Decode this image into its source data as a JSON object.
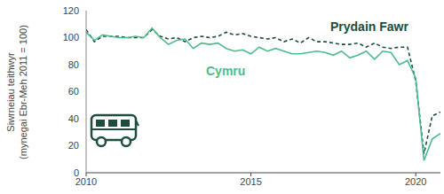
{
  "chart_data": {
    "type": "line",
    "y_label": [
      "Siwrneiau teithwyr",
      "(mynegai Ebr-Meh 2011 = 100)"
    ],
    "x": [
      2010,
      2010.25,
      2010.5,
      2010.75,
      2011,
      2011.25,
      2011.5,
      2011.75,
      2012,
      2012.25,
      2012.5,
      2012.75,
      2013,
      2013.25,
      2013.5,
      2013.75,
      2014,
      2014.25,
      2014.5,
      2014.75,
      2015,
      2015.25,
      2015.5,
      2015.75,
      2016,
      2016.25,
      2016.5,
      2016.75,
      2017,
      2017.25,
      2017.5,
      2017.75,
      2018,
      2018.25,
      2018.5,
      2018.75,
      2019,
      2019.25,
      2019.5,
      2019.75,
      2020,
      2020.25,
      2020.5,
      2020.75
    ],
    "series": [
      {
        "name": "Prydain Fawr",
        "color": "#1d4d3b",
        "line_style": "dashed",
        "values": [
          106,
          97,
          101,
          101,
          101,
          100,
          100,
          100,
          106,
          101,
          99,
          100,
          97,
          100,
          101,
          100,
          101,
          104,
          102,
          103,
          101,
          100,
          99,
          100,
          97,
          99,
          96,
          100,
          97,
          97,
          96,
          95,
          95,
          96,
          93,
          96,
          93,
          92,
          93,
          93,
          68,
          14,
          42,
          45
        ]
      },
      {
        "name": "Cymru",
        "color": "#4dbb8b",
        "line_style": "solid",
        "values": [
          104,
          98,
          102,
          101,
          100,
          100,
          101,
          100,
          107,
          100,
          95,
          98,
          99,
          92,
          96,
          95,
          96,
          92,
          90,
          91,
          88,
          93,
          90,
          92,
          90,
          88,
          88,
          89,
          90,
          89,
          87,
          90,
          85,
          87,
          90,
          84,
          90,
          89,
          80,
          83,
          70,
          9,
          25,
          29
        ]
      }
    ],
    "xlim": [
      2010,
      2020.75
    ],
    "xticks": [
      2010,
      2015,
      2020
    ],
    "ylim": [
      0,
      120
    ],
    "yticks": [
      0,
      20,
      40,
      60,
      80,
      100,
      120
    ],
    "grid": false
  }
}
